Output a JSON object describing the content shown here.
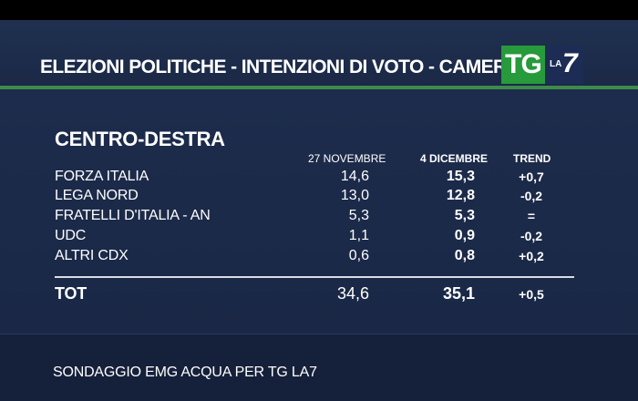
{
  "header": {
    "title": "ELEZIONI POLITICHE - INTENZIONI DI VOTO - CAMERA",
    "logo_tg": "TG",
    "logo_la": "LA",
    "logo_7": "7",
    "accent_green": "#279a3c"
  },
  "table": {
    "section_title": "CENTRO-DESTRA",
    "columns": [
      "27 NOVEMBRE",
      "4 DICEMBRE",
      "TREND"
    ],
    "rows": [
      {
        "party": "FORZA ITALIA",
        "nov27": "14,6",
        "dec4": "15,3",
        "trend": "+0,7"
      },
      {
        "party": "LEGA NORD",
        "nov27": "13,0",
        "dec4": "12,8",
        "trend": "-0,2"
      },
      {
        "party": "FRATELLI D'ITALIA - AN",
        "nov27": "5,3",
        "dec4": "5,3",
        "trend": "="
      },
      {
        "party": "UDC",
        "nov27": "1,1",
        "dec4": "0,9",
        "trend": "-0,2"
      },
      {
        "party": "ALTRI CDX",
        "nov27": "0,6",
        "dec4": "0,8",
        "trend": "+0,2"
      }
    ],
    "total": {
      "party": "TOT",
      "nov27": "34,6",
      "dec4": "35,1",
      "trend": "+0,5"
    }
  },
  "footer": {
    "source": "SONDAGGIO EMG ACQUA PER TG LA7"
  }
}
